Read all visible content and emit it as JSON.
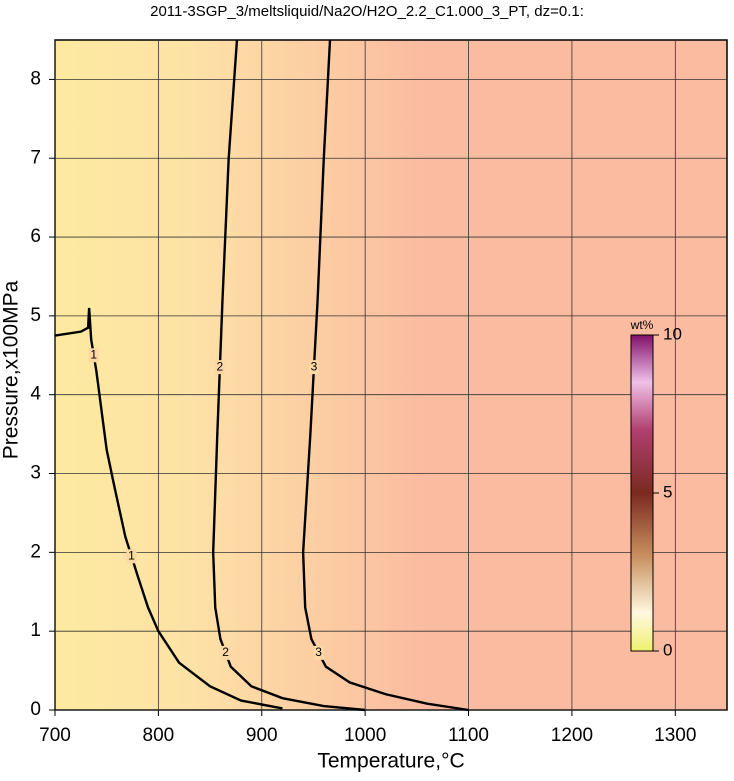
{
  "chart_data": {
    "type": "contour",
    "title": "2011-3SGP_3/meltsliquid/Na2O/H2O_2.2_C1.000_3_PT, dz=0.1:",
    "x_label": "Temperature,°C",
    "y_label": "Pressure,x100MPa",
    "xlim": [
      700,
      1350
    ],
    "ylim": [
      0,
      8.5
    ],
    "xticks": [
      700,
      800,
      900,
      1000,
      1100,
      1200,
      1300
    ],
    "yticks": [
      0,
      1,
      2,
      3,
      4,
      5,
      6,
      7,
      8
    ],
    "grid": true,
    "series": [
      {
        "name": "1",
        "color": "#000000",
        "x": [
          700,
          725,
          732,
          733,
          735,
          740,
          745,
          750,
          758,
          768,
          780,
          790,
          800,
          820,
          850,
          880,
          920
        ],
        "y": [
          4.75,
          4.8,
          4.85,
          5.1,
          4.7,
          4.3,
          3.8,
          3.3,
          2.8,
          2.2,
          1.7,
          1.3,
          1.0,
          0.6,
          0.3,
          0.12,
          0.02
        ]
      },
      {
        "name": "2",
        "color": "#000000",
        "x": [
          876,
          868,
          862,
          857,
          853,
          855,
          860,
          870,
          890,
          920,
          960,
          1000
        ],
        "y": [
          8.5,
          7,
          5.2,
          3.5,
          2,
          1.3,
          0.9,
          0.55,
          0.3,
          0.15,
          0.05,
          0
        ]
      },
      {
        "name": "3",
        "color": "#000000",
        "x": [
          966,
          960,
          954,
          947,
          940,
          942,
          948,
          962,
          985,
          1020,
          1060,
          1100
        ],
        "y": [
          8.5,
          7,
          5.2,
          3.5,
          2,
          1.3,
          0.9,
          0.55,
          0.35,
          0.2,
          0.08,
          0
        ]
      }
    ],
    "colorbar": {
      "label": "wt%",
      "lim": [
        0,
        10
      ],
      "ticks": [
        0,
        5,
        10
      ]
    }
  }
}
